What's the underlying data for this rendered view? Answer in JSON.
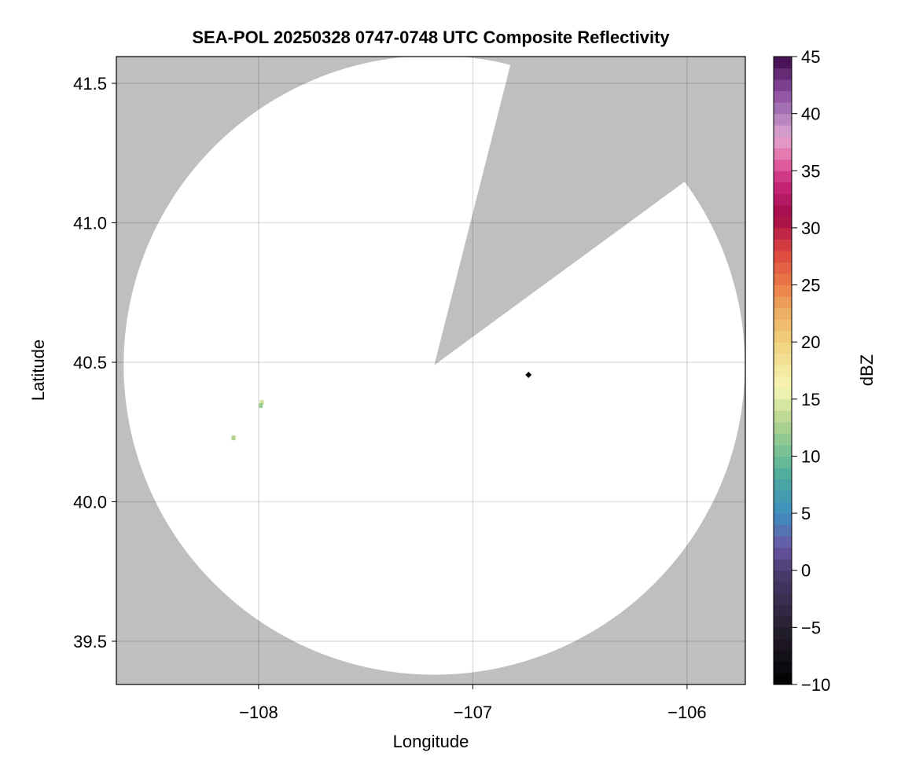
{
  "chart_data": {
    "type": "heatmap",
    "title": "SEA-POL 20250328 0747-0748 UTC Composite Reflectivity",
    "xlabel": "Longitude",
    "ylabel": "Latitude",
    "xlim": [
      -108.664,
      -105.728
    ],
    "ylim": [
      39.345,
      41.596
    ],
    "xticks": [
      -108,
      -107,
      -106
    ],
    "xtick_labels": [
      "−108",
      "−107",
      "−106"
    ],
    "yticks": [
      39.5,
      40.0,
      40.5,
      41.0,
      41.5
    ],
    "ytick_labels": [
      "39.5",
      "40.0",
      "40.5",
      "41.0",
      "41.5"
    ],
    "grid": true,
    "background_color": "#bfbfbf",
    "radar_center": {
      "lon": -107.18,
      "lat": 40.49
    },
    "coverage_radius_deg": {
      "lon": 1.45,
      "lat": 1.11
    },
    "blocked_sector_edges": [
      {
        "lon": -106.84,
        "lat": 41.52
      },
      {
        "lon": -106.06,
        "lat": 41.12
      }
    ],
    "echoes": [
      {
        "lon": -107.985,
        "lat": 40.356,
        "dbz": 14
      },
      {
        "lon": -107.99,
        "lat": 40.345,
        "dbz": 12
      },
      {
        "lon": -108.117,
        "lat": 40.229,
        "dbz": 13
      }
    ],
    "marker": {
      "lon": -106.74,
      "lat": 40.455,
      "shape": "diamond",
      "color": "#000000"
    },
    "colorbar": {
      "label": "dBZ",
      "range": [
        -10,
        45
      ],
      "ticks": [
        -10,
        -5,
        0,
        5,
        10,
        15,
        20,
        25,
        30,
        35,
        40,
        45
      ],
      "tick_labels": [
        "−10",
        "−5",
        "0",
        "5",
        "10",
        "15",
        "20",
        "25",
        "30",
        "35",
        "40",
        "45"
      ],
      "stops": [
        [
          -10,
          "#000000"
        ],
        [
          -5,
          "#26202f"
        ],
        [
          0,
          "#4a3d72"
        ],
        [
          2,
          "#6a55a5"
        ],
        [
          5,
          "#3f8fc0"
        ],
        [
          8,
          "#4aa8a0"
        ],
        [
          10,
          "#6ebe94"
        ],
        [
          13,
          "#b3d48f"
        ],
        [
          16,
          "#f7f7b5"
        ],
        [
          20,
          "#f0d17c"
        ],
        [
          23,
          "#eca860"
        ],
        [
          25,
          "#ec7c48"
        ],
        [
          28,
          "#da4540"
        ],
        [
          31,
          "#a40a48"
        ],
        [
          34,
          "#c8287d"
        ],
        [
          36,
          "#e66ba7"
        ],
        [
          38,
          "#e0a5d0"
        ],
        [
          40,
          "#ac7cbb"
        ],
        [
          42,
          "#8a4b9e"
        ],
        [
          45,
          "#3d0a4a"
        ]
      ]
    }
  }
}
